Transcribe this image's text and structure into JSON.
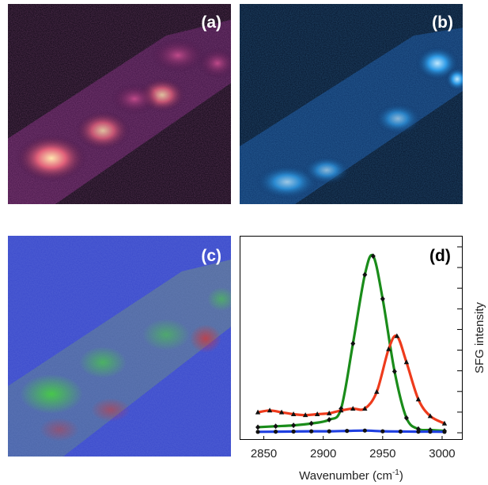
{
  "panels": {
    "a": {
      "label": "(a)"
    },
    "b": {
      "label": "(b)"
    },
    "c": {
      "label": "(c)"
    },
    "d": {
      "label": "(d)"
    }
  },
  "chart_data": {
    "type": "line",
    "xlabel": "Wavenumber (cm",
    "xlabel_sup": "-1",
    "xlabel_close": ")",
    "ylabel": "SFG intensity",
    "xlim": [
      2835,
      3010
    ],
    "ylim": [
      0,
      1.0
    ],
    "xticks": [
      2850,
      2900,
      2950,
      3000
    ],
    "yticks_count": 10,
    "grid": false,
    "series": [
      {
        "color": "#1a8c1a",
        "marker": "diamond",
        "x": [
          2845,
          2860,
          2875,
          2890,
          2905,
          2915,
          2925,
          2935,
          2942,
          2950,
          2960,
          2970,
          2980,
          2990,
          3002
        ],
        "y": [
          0.03,
          0.035,
          0.04,
          0.05,
          0.07,
          0.13,
          0.48,
          0.85,
          0.95,
          0.72,
          0.33,
          0.08,
          0.02,
          0.015,
          0.01
        ]
      },
      {
        "color": "#ee3b1c",
        "marker": "triangle",
        "x": [
          2845,
          2855,
          2865,
          2875,
          2885,
          2895,
          2905,
          2915,
          2925,
          2935,
          2945,
          2955,
          2962,
          2970,
          2980,
          2990,
          3002
        ],
        "y": [
          0.11,
          0.12,
          0.11,
          0.1,
          0.095,
          0.1,
          0.105,
          0.12,
          0.13,
          0.13,
          0.22,
          0.45,
          0.52,
          0.38,
          0.18,
          0.09,
          0.05
        ]
      },
      {
        "color": "#1f3fe0",
        "marker": "circle",
        "x": [
          2845,
          2860,
          2875,
          2890,
          2905,
          2920,
          2935,
          2950,
          2965,
          2980,
          2990,
          3002
        ],
        "y": [
          0.005,
          0.006,
          0.007,
          0.008,
          0.008,
          0.01,
          0.012,
          0.008,
          0.007,
          0.006,
          0.006,
          0.005
        ]
      }
    ]
  }
}
